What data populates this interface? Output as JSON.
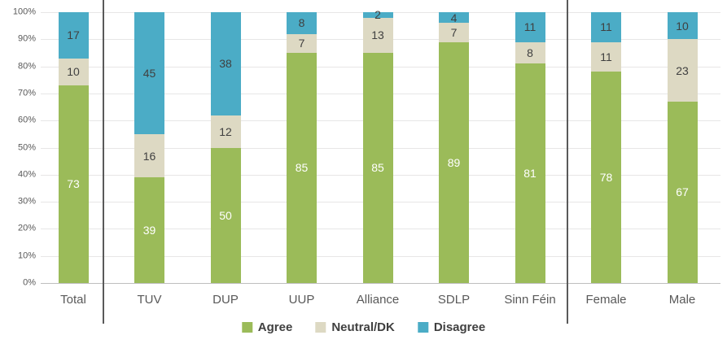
{
  "chart_data": {
    "type": "bar",
    "stacked": true,
    "orientation": "vertical",
    "title": "",
    "xlabel": "",
    "ylabel": "",
    "ylim": [
      0,
      100
    ],
    "grid": true,
    "legend_position": "bottom",
    "y_ticks": [
      "0%",
      "10%",
      "20%",
      "30%",
      "40%",
      "50%",
      "60%",
      "70%",
      "80%",
      "90%",
      "100%"
    ],
    "categories": [
      "Total",
      "TUV",
      "DUP",
      "UUP",
      "Alliance",
      "SDLP",
      "Sinn Féin",
      "Female",
      "Male"
    ],
    "group_dividers_after": [
      "Total",
      "Sinn Féin"
    ],
    "series": [
      {
        "name": "Agree",
        "color": "#9bbb59",
        "label_color": "#ffffff",
        "values": [
          73,
          39,
          50,
          85,
          85,
          89,
          81,
          78,
          67
        ]
      },
      {
        "name": "Neutral/DK",
        "color": "#ddd9c3",
        "label_color": "#404040",
        "values": [
          10,
          16,
          12,
          7,
          13,
          7,
          8,
          11,
          23
        ]
      },
      {
        "name": "Disagree",
        "color": "#4bacc6",
        "label_color": "#404040",
        "values": [
          17,
          45,
          38,
          8,
          2,
          4,
          11,
          11,
          10
        ]
      }
    ],
    "colors": {
      "gridline": "#e7e6e6",
      "axis_line": "#bfbfbf",
      "divider": "#595959",
      "tick_text": "#595959",
      "legend_text": "#404040"
    }
  },
  "legend": {
    "items": [
      {
        "label": "Agree",
        "color": "#9bbb59"
      },
      {
        "label": "Neutral/DK",
        "color": "#ddd9c3"
      },
      {
        "label": "Disagree",
        "color": "#4bacc6"
      }
    ]
  }
}
